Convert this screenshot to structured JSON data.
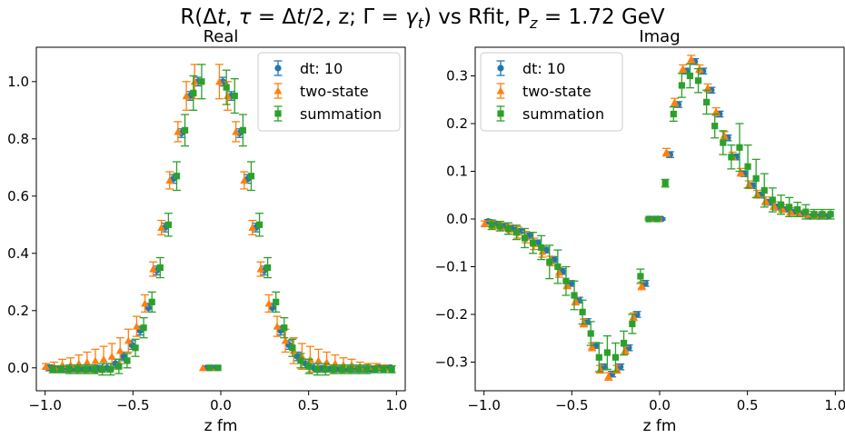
{
  "figure": {
    "suptitle": {
      "prefix": "R(Δ",
      "dt": "t",
      "middle1": ", ",
      "tau": "τ",
      "middle2": " = Δ",
      "dt2": "t",
      "middle3": "/2, z; Γ = ",
      "gamma": "γ",
      "gamma_sub": "t",
      "suffix": ") vs Rfit, P",
      "p_sub": "z",
      "tail": " = 1.72 GeV"
    }
  },
  "chart_data": [
    {
      "type": "scatter",
      "panel": "real",
      "title": "Real",
      "xlabel": "z fm",
      "ylabel": "",
      "xlim": [
        -1.05,
        1.05
      ],
      "ylim": [
        -0.08,
        1.12
      ],
      "xticks": [
        -1.0,
        -0.5,
        0.0,
        0.5,
        1.0
      ],
      "xtick_labels": [
        "−1.0",
        "−0.5",
        "0.0",
        "0.5",
        "1.0"
      ],
      "yticks": [
        0.0,
        0.2,
        0.4,
        0.6,
        0.8,
        1.0
      ],
      "ytick_labels": [
        "0.0",
        "0.2",
        "0.4",
        "0.6",
        "0.8",
        "1.0"
      ],
      "legend_position": "top-right",
      "series": [
        {
          "name": "dt: 10",
          "marker": "circle",
          "color": "#1f77b4",
          "x": [
            -0.976,
            -0.929,
            -0.882,
            -0.835,
            -0.788,
            -0.741,
            -0.694,
            -0.647,
            -0.6,
            -0.553,
            -0.506,
            -0.459,
            -0.412,
            -0.365,
            -0.318,
            -0.271,
            -0.224,
            -0.176,
            -0.129,
            -0.082,
            -0.035,
            0.012,
            0.059,
            0.106,
            0.153,
            0.2,
            0.247,
            0.294,
            0.341,
            0.388,
            0.435,
            0.482,
            0.529,
            0.576,
            0.623,
            0.671,
            0.718,
            0.765,
            0.812,
            0.859,
            0.906,
            0.953
          ],
          "y": [
            0.0,
            -0.005,
            -0.005,
            -0.005,
            -0.005,
            -0.005,
            -0.004,
            0.0,
            0.015,
            0.04,
            0.08,
            0.13,
            0.21,
            0.34,
            0.49,
            0.66,
            0.82,
            0.95,
            1.0,
            0.0,
            0.0,
            1.0,
            0.95,
            0.82,
            0.66,
            0.49,
            0.34,
            0.21,
            0.13,
            0.08,
            0.04,
            0.015,
            0.0,
            -0.004,
            -0.005,
            -0.005,
            -0.005,
            -0.005,
            -0.005,
            -0.005,
            0.0,
            0.0
          ],
          "err": [
            0.01,
            0.01,
            0.01,
            0.01,
            0.01,
            0.01,
            0.012,
            0.015,
            0.015,
            0.015,
            0.015,
            0.015,
            0.015,
            0.015,
            0.015,
            0.015,
            0.015,
            0.015,
            0.015,
            0.0,
            0.0,
            0.015,
            0.015,
            0.015,
            0.015,
            0.015,
            0.015,
            0.015,
            0.015,
            0.015,
            0.015,
            0.015,
            0.015,
            0.012,
            0.01,
            0.01,
            0.01,
            0.01,
            0.01,
            0.01,
            0.01,
            0.01
          ]
        },
        {
          "name": "two-state",
          "marker": "triangle",
          "color": "#ff7f0e",
          "x": [
            -0.996,
            -0.949,
            -0.902,
            -0.855,
            -0.808,
            -0.761,
            -0.714,
            -0.667,
            -0.62,
            -0.573,
            -0.526,
            -0.479,
            -0.432,
            -0.385,
            -0.338,
            -0.291,
            -0.244,
            -0.196,
            -0.149,
            -0.102,
            -0.055,
            -0.008,
            0.039,
            0.086,
            0.133,
            0.18,
            0.227,
            0.274,
            0.321,
            0.368,
            0.415,
            0.462,
            0.509,
            0.556,
            0.603,
            0.651,
            0.698,
            0.745,
            0.792,
            0.839,
            0.886,
            0.933
          ],
          "y": [
            0.005,
            0.005,
            0.01,
            0.01,
            0.015,
            0.02,
            0.025,
            0.03,
            0.04,
            0.06,
            0.095,
            0.145,
            0.225,
            0.345,
            0.49,
            0.655,
            0.825,
            0.95,
            1.0,
            0.0,
            0.0,
            1.0,
            0.95,
            0.825,
            0.655,
            0.49,
            0.345,
            0.225,
            0.145,
            0.095,
            0.06,
            0.04,
            0.03,
            0.025,
            0.02,
            0.015,
            0.01,
            0.01,
            0.005,
            0.005,
            0.005,
            0.0
          ],
          "err": [
            0.01,
            0.015,
            0.02,
            0.025,
            0.03,
            0.035,
            0.04,
            0.045,
            0.045,
            0.045,
            0.04,
            0.035,
            0.03,
            0.025,
            0.025,
            0.03,
            0.035,
            0.05,
            0.06,
            0.0,
            0.0,
            0.06,
            0.05,
            0.035,
            0.03,
            0.025,
            0.025,
            0.03,
            0.035,
            0.04,
            0.045,
            0.045,
            0.045,
            0.04,
            0.035,
            0.03,
            0.025,
            0.02,
            0.015,
            0.01,
            0.01,
            0.01
          ]
        },
        {
          "name": "summation",
          "marker": "square",
          "color": "#2ca02c",
          "x": [
            -0.956,
            -0.909,
            -0.862,
            -0.815,
            -0.768,
            -0.721,
            -0.674,
            -0.627,
            -0.58,
            -0.533,
            -0.486,
            -0.439,
            -0.392,
            -0.345,
            -0.298,
            -0.251,
            -0.204,
            -0.156,
            -0.109,
            -0.062,
            -0.015,
            0.032,
            0.079,
            0.126,
            0.173,
            0.22,
            0.267,
            0.314,
            0.361,
            0.408,
            0.455,
            0.502,
            0.549,
            0.596,
            0.643,
            0.691,
            0.738,
            0.785,
            0.832,
            0.879,
            0.926,
            0.973
          ],
          "y": [
            -0.005,
            -0.005,
            -0.005,
            -0.005,
            -0.005,
            -0.005,
            -0.005,
            -0.005,
            0.005,
            0.025,
            0.07,
            0.14,
            0.23,
            0.35,
            0.5,
            0.67,
            0.83,
            0.96,
            1.0,
            0.0,
            0.0,
            0.98,
            0.95,
            0.83,
            0.67,
            0.5,
            0.35,
            0.23,
            0.14,
            0.07,
            0.025,
            0.005,
            -0.005,
            -0.005,
            -0.005,
            -0.005,
            -0.005,
            -0.005,
            -0.005,
            -0.005,
            -0.005,
            -0.005
          ],
          "err": [
            0.012,
            0.012,
            0.015,
            0.015,
            0.015,
            0.015,
            0.02,
            0.02,
            0.025,
            0.025,
            0.03,
            0.035,
            0.035,
            0.035,
            0.04,
            0.05,
            0.055,
            0.06,
            0.06,
            0.0,
            0.0,
            0.06,
            0.06,
            0.055,
            0.05,
            0.04,
            0.035,
            0.035,
            0.035,
            0.03,
            0.025,
            0.025,
            0.02,
            0.02,
            0.015,
            0.015,
            0.015,
            0.015,
            0.015,
            0.012,
            0.012,
            0.012
          ]
        }
      ]
    },
    {
      "type": "scatter",
      "panel": "imag",
      "title": "Imag",
      "xlabel": "z fm",
      "ylabel": "",
      "xlim": [
        -1.05,
        1.05
      ],
      "ylim": [
        -0.36,
        0.36
      ],
      "xticks": [
        -1.0,
        -0.5,
        0.0,
        0.5,
        1.0
      ],
      "xtick_labels": [
        "−1.0",
        "−0.5",
        "0.0",
        "0.5",
        "1.0"
      ],
      "yticks": [
        -0.3,
        -0.2,
        -0.1,
        0.0,
        0.1,
        0.2,
        0.3
      ],
      "ytick_labels": [
        "−0.3",
        "−0.2",
        "−0.1",
        "0.0",
        "0.1",
        "0.2",
        "0.3"
      ],
      "legend_position": "top-left",
      "series": [
        {
          "name": "dt: 10",
          "marker": "circle",
          "color": "#1f77b4",
          "x": [
            -0.976,
            -0.929,
            -0.882,
            -0.835,
            -0.788,
            -0.741,
            -0.694,
            -0.647,
            -0.6,
            -0.553,
            -0.506,
            -0.459,
            -0.412,
            -0.365,
            -0.318,
            -0.271,
            -0.224,
            -0.176,
            -0.129,
            -0.082,
            -0.035,
            0.012,
            0.059,
            0.106,
            0.153,
            0.2,
            0.247,
            0.294,
            0.341,
            0.388,
            0.435,
            0.482,
            0.529,
            0.576,
            0.623,
            0.671,
            0.718,
            0.765,
            0.812,
            0.859,
            0.906,
            0.953
          ],
          "y": [
            -0.005,
            -0.01,
            -0.015,
            -0.02,
            -0.025,
            -0.035,
            -0.05,
            -0.065,
            -0.085,
            -0.11,
            -0.135,
            -0.17,
            -0.215,
            -0.265,
            -0.31,
            -0.325,
            -0.31,
            -0.27,
            -0.2,
            -0.135,
            0.0,
            0.0,
            0.135,
            0.24,
            0.31,
            0.33,
            0.31,
            0.27,
            0.22,
            0.17,
            0.13,
            0.095,
            0.07,
            0.05,
            0.035,
            0.025,
            0.02,
            0.015,
            0.01,
            0.005,
            0.005,
            0.005
          ],
          "err": [
            0.004,
            0.004,
            0.004,
            0.004,
            0.005,
            0.006,
            0.006,
            0.006,
            0.006,
            0.006,
            0.006,
            0.006,
            0.006,
            0.006,
            0.006,
            0.006,
            0.006,
            0.006,
            0.006,
            0.006,
            0.002,
            0.002,
            0.006,
            0.006,
            0.006,
            0.006,
            0.006,
            0.006,
            0.006,
            0.006,
            0.006,
            0.006,
            0.006,
            0.006,
            0.006,
            0.006,
            0.005,
            0.004,
            0.004,
            0.004,
            0.004,
            0.004
          ]
        },
        {
          "name": "two-state",
          "marker": "triangle",
          "color": "#ff7f0e",
          "x": [
            -0.996,
            -0.949,
            -0.902,
            -0.855,
            -0.808,
            -0.761,
            -0.714,
            -0.667,
            -0.62,
            -0.573,
            -0.526,
            -0.479,
            -0.432,
            -0.385,
            -0.338,
            -0.291,
            -0.244,
            -0.196,
            -0.149,
            -0.102,
            -0.055,
            -0.008,
            0.039,
            0.086,
            0.133,
            0.18,
            0.227,
            0.274,
            0.321,
            0.368,
            0.415,
            0.462,
            0.509,
            0.556,
            0.603,
            0.651,
            0.698,
            0.745,
            0.792,
            0.839,
            0.886,
            0.933
          ],
          "y": [
            -0.01,
            -0.012,
            -0.016,
            -0.022,
            -0.028,
            -0.038,
            -0.052,
            -0.068,
            -0.088,
            -0.112,
            -0.138,
            -0.172,
            -0.218,
            -0.268,
            -0.315,
            -0.33,
            -0.315,
            -0.275,
            -0.205,
            -0.14,
            0.0,
            0.0,
            0.14,
            0.245,
            0.315,
            0.335,
            0.315,
            0.275,
            0.225,
            0.175,
            0.132,
            0.098,
            0.072,
            0.052,
            0.038,
            0.028,
            0.022,
            0.016,
            0.012,
            0.01,
            0.008,
            0.006
          ],
          "err": [
            0.006,
            0.008,
            0.008,
            0.01,
            0.012,
            0.012,
            0.012,
            0.012,
            0.01,
            0.01,
            0.008,
            0.008,
            0.008,
            0.008,
            0.008,
            0.008,
            0.008,
            0.008,
            0.008,
            0.008,
            0.002,
            0.002,
            0.008,
            0.008,
            0.008,
            0.008,
            0.008,
            0.008,
            0.008,
            0.008,
            0.008,
            0.008,
            0.008,
            0.008,
            0.008,
            0.008,
            0.008,
            0.008,
            0.006,
            0.006,
            0.006,
            0.006
          ]
        },
        {
          "name": "summation",
          "marker": "square",
          "color": "#2ca02c",
          "x": [
            -0.956,
            -0.909,
            -0.862,
            -0.815,
            -0.768,
            -0.721,
            -0.674,
            -0.627,
            -0.58,
            -0.533,
            -0.486,
            -0.439,
            -0.392,
            -0.345,
            -0.298,
            -0.251,
            -0.204,
            -0.156,
            -0.109,
            -0.062,
            -0.015,
            0.032,
            0.079,
            0.126,
            0.173,
            0.22,
            0.267,
            0.314,
            0.361,
            0.408,
            0.455,
            0.502,
            0.549,
            0.596,
            0.643,
            0.691,
            0.738,
            0.785,
            0.832,
            0.879,
            0.926,
            0.973
          ],
          "y": [
            -0.012,
            -0.015,
            -0.02,
            -0.028,
            -0.04,
            -0.05,
            -0.06,
            -0.09,
            -0.1,
            -0.13,
            -0.16,
            -0.195,
            -0.24,
            -0.29,
            -0.28,
            -0.29,
            -0.26,
            -0.22,
            -0.12,
            0.0,
            0.0,
            0.075,
            0.22,
            0.28,
            0.3,
            0.29,
            0.245,
            0.195,
            0.16,
            0.13,
            0.15,
            0.11,
            0.085,
            0.06,
            0.04,
            0.03,
            0.025,
            0.02,
            0.015,
            0.01,
            0.01,
            0.01
          ],
          "err": [
            0.01,
            0.01,
            0.012,
            0.015,
            0.02,
            0.022,
            0.025,
            0.035,
            0.035,
            0.03,
            0.03,
            0.025,
            0.025,
            0.03,
            0.035,
            0.03,
            0.025,
            0.02,
            0.015,
            0.002,
            0.002,
            0.008,
            0.015,
            0.025,
            0.025,
            0.025,
            0.025,
            0.025,
            0.025,
            0.025,
            0.05,
            0.045,
            0.04,
            0.035,
            0.025,
            0.02,
            0.02,
            0.015,
            0.015,
            0.01,
            0.01,
            0.01
          ]
        }
      ]
    }
  ]
}
